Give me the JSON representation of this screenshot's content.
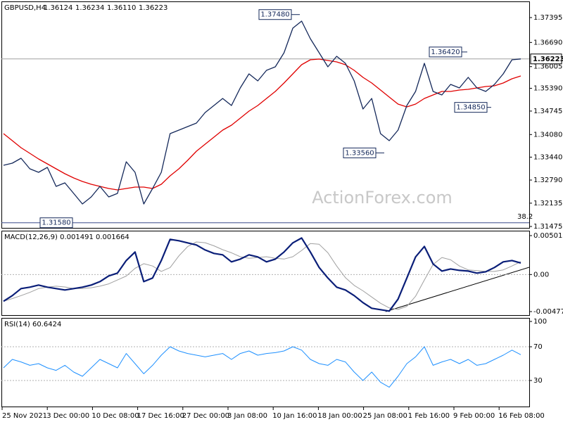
{
  "chart_data": [
    {
      "type": "line",
      "title": "GBPUSD,H4",
      "header_values": [
        "1.36124",
        "1.36234",
        "1.36110",
        "1.36223"
      ],
      "ylim": [
        1.31415,
        1.37853
      ],
      "yticks": [
        1.37395,
        {
          "value": 1.3669,
          "label": "1.36690"
        },
        {
          "value": 1.36005,
          "label": "1.36005"
        },
        {
          "value": 1.3539,
          "label": "1.35390"
        },
        1.34745,
        {
          "value": 1.3408,
          "label": "1.34080"
        },
        {
          "value": 1.3344,
          "label": "1.33440"
        },
        {
          "value": 1.3279,
          "label": "1.32790"
        },
        1.32135,
        1.31475
      ],
      "current_price": 1.36223,
      "annotations": [
        {
          "value": 1.3748,
          "label": "1.37480"
        },
        {
          "value": 1.3356,
          "label": "1.33560"
        },
        {
          "value": 1.3642,
          "label": "1.36420"
        },
        {
          "value": 1.3485,
          "label": "1.34850"
        },
        {
          "value": 1.3158,
          "label": "1.31580"
        }
      ],
      "fib_label": "38.2",
      "watermark": "ActionForex.com",
      "series": [
        {
          "color": "#14285a",
          "values": [
            1.33209,
            1.33269,
            1.33409,
            1.3311,
            1.3301,
            1.3315,
            1.32611,
            1.32711,
            1.32412,
            1.32113,
            1.32312,
            1.32611,
            1.32312,
            1.32412,
            1.33309,
            1.3301,
            1.32113,
            1.32552,
            1.3301,
            1.34106,
            1.34206,
            1.34305,
            1.34405,
            1.34704,
            1.34903,
            1.35103,
            1.34903,
            1.35402,
            1.358,
            1.35601,
            1.359,
            1.36,
            1.36398,
            1.37096,
            1.37295,
            1.36797,
            1.36398,
            1.36,
            1.36298,
            1.36099,
            1.35601,
            1.34804,
            1.35103,
            1.34106,
            1.33907,
            1.34206,
            1.34903,
            1.35302,
            1.36099,
            1.35302,
            1.35202,
            1.35501,
            1.35402,
            1.35701,
            1.35402,
            1.35302,
            1.35501,
            1.358,
            1.36199,
            1.36223
          ]
        },
        {
          "color": "#e00000",
          "values": [
            1.34106,
            1.33907,
            1.33708,
            1.33548,
            1.33389,
            1.33249,
            1.3311,
            1.3297,
            1.32851,
            1.32751,
            1.32671,
            1.32611,
            1.32552,
            1.32512,
            1.32552,
            1.32591,
            1.32591,
            1.32552,
            1.32671,
            1.3291,
            1.3311,
            1.33349,
            1.33608,
            1.33807,
            1.34007,
            1.34206,
            1.34345,
            1.34545,
            1.34744,
            1.34903,
            1.35103,
            1.35302,
            1.35541,
            1.358,
            1.36059,
            1.36199,
            1.36219,
            1.36179,
            1.36139,
            1.36059,
            1.359,
            1.35701,
            1.35541,
            1.35342,
            1.35143,
            1.34943,
            1.34863,
            1.34943,
            1.35103,
            1.35202,
            1.35302,
            1.35302,
            1.35342,
            1.35362,
            1.35402,
            1.35441,
            1.35461,
            1.35541,
            1.35661,
            1.3574
          ]
        }
      ]
    },
    {
      "type": "line",
      "title": "MACD(12,26,9) 0.001491 0.001664",
      "ylim": [
        -0.005317,
        0.005649
      ],
      "yticks": [
        0.005015,
        {
          "value": 0,
          "label": "0.00"
        },
        -0.004773
      ],
      "levels": [
        0
      ],
      "series": [
        {
          "color": "#0a1e78",
          "width": 2.2,
          "values": [
            -0.00344,
            -0.00272,
            -0.00181,
            -0.00163,
            -0.00136,
            -0.00163,
            -0.00181,
            -0.00199,
            -0.00181,
            -0.00163,
            -0.00136,
            -0.00091,
            -0.00018,
            0.00018,
            0.00181,
            0.0029,
            -0.00091,
            -0.00045,
            0.00181,
            0.00453,
            0.00435,
            0.00408,
            0.00381,
            0.00317,
            0.00272,
            0.00254,
            0.00163,
            0.00199,
            0.00254,
            0.00227,
            0.00163,
            0.00199,
            0.0029,
            0.00408,
            0.00471,
            0.0029,
            0.00091,
            -0.00045,
            -0.00163,
            -0.00199,
            -0.00272,
            -0.00362,
            -0.00435,
            -0.00453,
            -0.00471,
            -0.00317,
            -0.00045,
            0.00227,
            0.00362,
            0.00136,
            0.00045,
            0.00072,
            0.00054,
            0.00045,
            0.00018,
            0.00036,
            0.00091,
            0.00163,
            0.00181,
            0.001491
          ]
        },
        {
          "color": "#a0a0a0",
          "width": 1,
          "values": [
            -0.00344,
            -0.0031,
            -0.00272,
            -0.0023,
            -0.00181,
            -0.00163,
            -0.0015,
            -0.0016,
            -0.0018,
            -0.0018,
            -0.0017,
            -0.0015,
            -0.0012,
            -0.0007,
            -0.0002,
            0.0008,
            0.0014,
            0.0011,
            0.0004,
            0.0009,
            0.0024,
            0.0036,
            0.0042,
            0.0041,
            0.0037,
            0.0032,
            0.0028,
            0.0023,
            0.0021,
            0.0022,
            0.0023,
            0.0021,
            0.002,
            0.0023,
            0.0031,
            0.004,
            0.0039,
            0.0028,
            0.0011,
            -0.0004,
            -0.0014,
            -0.0021,
            -0.0029,
            -0.0037,
            -0.0043,
            -0.0045,
            -0.0041,
            -0.0028,
            -0.0007,
            0.0013,
            0.0022,
            0.0019,
            0.0011,
            0.0006,
            0.0005,
            0.0004,
            0.0004,
            0.0006,
            0.0011,
            0.001664
          ]
        }
      ]
    },
    {
      "type": "line",
      "title": "RSI(14) 60.6424",
      "ylim": [
        -2.5,
        104.2
      ],
      "yticks": [
        100,
        70,
        30
      ],
      "levels": [
        30,
        70
      ],
      "x_tick_labels": [
        "25 Nov 2021",
        "3 Dec 00:00",
        "10 Dec 08:00",
        "17 Dec 16:00",
        "27 Dec 00:00",
        "3 Jan 08:00",
        "10 Jan 16:00",
        "18 Jan 00:00",
        "25 Jan 08:00",
        "1 Feb 16:00",
        "9 Feb 00:00",
        "16 Feb 08:00"
      ],
      "series": [
        {
          "color": "#1e90ff",
          "width": 1,
          "values": [
            45,
            55,
            52,
            48,
            50,
            45,
            42,
            48,
            40,
            35,
            45,
            55,
            50,
            45,
            62,
            50,
            38,
            48,
            60,
            70,
            65,
            62,
            60,
            58,
            60,
            62,
            55,
            62,
            65,
            60,
            62,
            63,
            65,
            70,
            66,
            55,
            50,
            48,
            55,
            52,
            40,
            30,
            40,
            28,
            22,
            35,
            50,
            58,
            70,
            48,
            52,
            55,
            50,
            55,
            48,
            50,
            55,
            60,
            66,
            60.6424
          ]
        }
      ]
    }
  ]
}
